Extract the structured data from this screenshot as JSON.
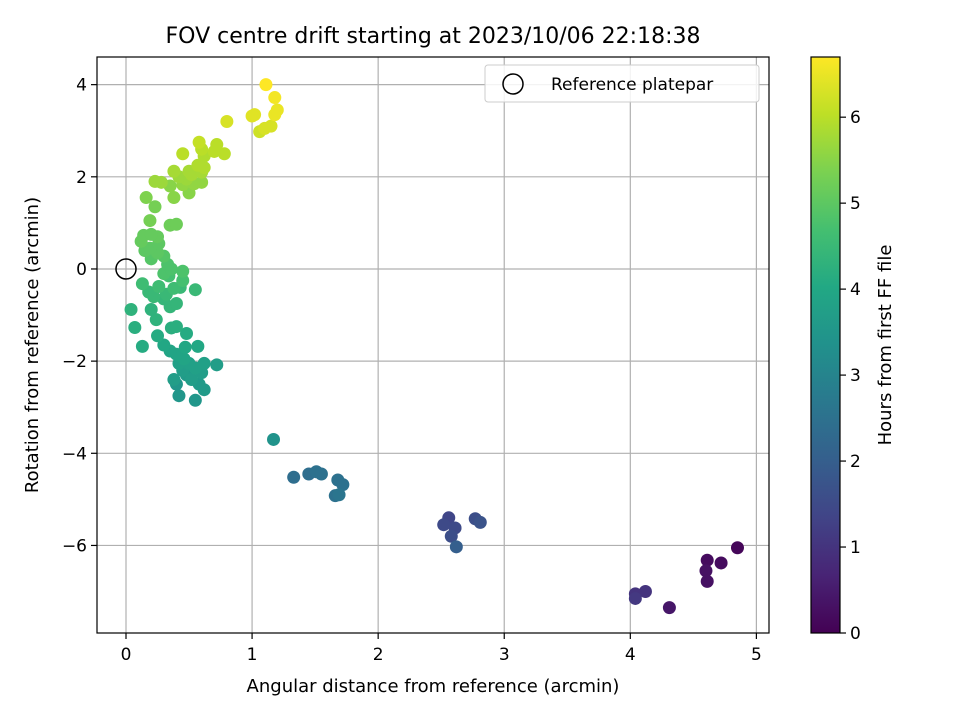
{
  "chart_data": {
    "type": "scatter",
    "title": "FOV centre drift starting at 2023/10/06 22:18:38",
    "xlabel": "Angular distance from reference (arcmin)",
    "ylabel": "Rotation from reference (arcmin)",
    "xlim": [
      -0.23,
      5.1
    ],
    "ylim": [
      -7.9,
      4.6
    ],
    "xticks": [
      "0",
      "1",
      "2",
      "3",
      "4",
      "5"
    ],
    "yticks": [
      "−6",
      "−4",
      "−2",
      "0",
      "2",
      "4"
    ],
    "grid": true,
    "legend": {
      "placement": "top-right",
      "label": "Reference platepar"
    },
    "reference_point": {
      "x": 0,
      "y": 0
    },
    "colorbar": {
      "label": "Hours from first FF file",
      "colormap": "viridis",
      "range": [
        0,
        6.7
      ],
      "ticks": [
        "0",
        "1",
        "2",
        "3",
        "4",
        "5",
        "6"
      ]
    },
    "points": [
      {
        "x": 4.85,
        "y": -6.05,
        "t": 0.1
      },
      {
        "x": 4.61,
        "y": -6.32,
        "t": 0.2
      },
      {
        "x": 4.72,
        "y": -6.38,
        "t": 0.2
      },
      {
        "x": 4.6,
        "y": -6.55,
        "t": 0.3
      },
      {
        "x": 4.61,
        "y": -6.78,
        "t": 0.3
      },
      {
        "x": 4.31,
        "y": -7.35,
        "t": 0.4
      },
      {
        "x": 4.12,
        "y": -7.0,
        "t": 1.0
      },
      {
        "x": 4.04,
        "y": -7.05,
        "t": 1.0
      },
      {
        "x": 4.04,
        "y": -7.15,
        "t": 1.1
      },
      {
        "x": 2.56,
        "y": -5.4,
        "t": 1.4
      },
      {
        "x": 2.52,
        "y": -5.55,
        "t": 1.5
      },
      {
        "x": 2.61,
        "y": -5.62,
        "t": 1.5
      },
      {
        "x": 2.58,
        "y": -5.8,
        "t": 1.6
      },
      {
        "x": 2.77,
        "y": -5.42,
        "t": 1.6
      },
      {
        "x": 2.81,
        "y": -5.5,
        "t": 1.7
      },
      {
        "x": 2.62,
        "y": -6.03,
        "t": 2.0
      },
      {
        "x": 1.33,
        "y": -4.52,
        "t": 2.4
      },
      {
        "x": 1.45,
        "y": -4.45,
        "t": 2.4
      },
      {
        "x": 1.51,
        "y": -4.4,
        "t": 2.5
      },
      {
        "x": 1.55,
        "y": -4.45,
        "t": 2.5
      },
      {
        "x": 1.68,
        "y": -4.58,
        "t": 2.5
      },
      {
        "x": 1.72,
        "y": -4.68,
        "t": 2.5
      },
      {
        "x": 1.66,
        "y": -4.92,
        "t": 2.5
      },
      {
        "x": 1.69,
        "y": -4.9,
        "t": 2.6
      },
      {
        "x": 1.17,
        "y": -3.7,
        "t": 3.4
      },
      {
        "x": 0.4,
        "y": -2.5,
        "t": 3.5
      },
      {
        "x": 0.55,
        "y": -2.85,
        "t": 3.5
      },
      {
        "x": 0.42,
        "y": -2.75,
        "t": 3.5
      },
      {
        "x": 0.62,
        "y": -2.62,
        "t": 3.6
      },
      {
        "x": 0.58,
        "y": -2.5,
        "t": 3.6
      },
      {
        "x": 0.48,
        "y": -2.3,
        "t": 3.6
      },
      {
        "x": 0.52,
        "y": -2.4,
        "t": 3.7
      },
      {
        "x": 0.45,
        "y": -2.2,
        "t": 3.7
      },
      {
        "x": 0.6,
        "y": -2.25,
        "t": 3.7
      },
      {
        "x": 0.38,
        "y": -2.4,
        "t": 3.7
      },
      {
        "x": 0.72,
        "y": -2.08,
        "t": 3.7
      },
      {
        "x": 0.62,
        "y": -2.05,
        "t": 3.8
      },
      {
        "x": 0.55,
        "y": -2.15,
        "t": 3.8
      },
      {
        "x": 0.5,
        "y": -2.05,
        "t": 3.8
      },
      {
        "x": 0.42,
        "y": -2.05,
        "t": 3.8
      },
      {
        "x": 0.46,
        "y": -1.95,
        "t": 3.9
      },
      {
        "x": 0.4,
        "y": -1.85,
        "t": 3.9
      },
      {
        "x": 0.35,
        "y": -1.78,
        "t": 3.9
      },
      {
        "x": 0.3,
        "y": -1.65,
        "t": 4.0
      },
      {
        "x": 0.57,
        "y": -1.68,
        "t": 4.0
      },
      {
        "x": 0.47,
        "y": -1.7,
        "t": 4.0
      },
      {
        "x": 0.48,
        "y": -1.4,
        "t": 4.1
      },
      {
        "x": 0.25,
        "y": -1.45,
        "t": 4.1
      },
      {
        "x": 0.13,
        "y": -1.68,
        "t": 4.1
      },
      {
        "x": 0.07,
        "y": -1.27,
        "t": 4.2
      },
      {
        "x": 0.36,
        "y": -1.28,
        "t": 4.2
      },
      {
        "x": 0.4,
        "y": -1.25,
        "t": 4.2
      },
      {
        "x": 0.24,
        "y": -1.1,
        "t": 4.3
      },
      {
        "x": 0.04,
        "y": -0.88,
        "t": 4.3
      },
      {
        "x": 0.2,
        "y": -0.88,
        "t": 4.3
      },
      {
        "x": 0.35,
        "y": -0.82,
        "t": 4.4
      },
      {
        "x": 0.4,
        "y": -0.75,
        "t": 4.4
      },
      {
        "x": 0.3,
        "y": -0.65,
        "t": 4.4
      },
      {
        "x": 0.22,
        "y": -0.6,
        "t": 4.5
      },
      {
        "x": 0.32,
        "y": -0.55,
        "t": 4.5
      },
      {
        "x": 0.18,
        "y": -0.5,
        "t": 4.5
      },
      {
        "x": 0.55,
        "y": -0.45,
        "t": 4.5
      },
      {
        "x": 0.43,
        "y": -0.4,
        "t": 4.5
      },
      {
        "x": 0.38,
        "y": -0.42,
        "t": 4.6
      },
      {
        "x": 0.26,
        "y": -0.38,
        "t": 4.6
      },
      {
        "x": 0.13,
        "y": -0.32,
        "t": 4.6
      },
      {
        "x": 0.45,
        "y": -0.25,
        "t": 4.7
      },
      {
        "x": 0.34,
        "y": -0.15,
        "t": 4.7
      },
      {
        "x": 0.3,
        "y": -0.1,
        "t": 4.8
      },
      {
        "x": 0.45,
        "y": -0.05,
        "t": 4.8
      },
      {
        "x": 0.36,
        "y": 0.0,
        "t": 4.8
      },
      {
        "x": 0.33,
        "y": 0.1,
        "t": 4.8
      },
      {
        "x": 0.3,
        "y": 0.28,
        "t": 4.9
      },
      {
        "x": 0.2,
        "y": 0.22,
        "t": 4.9
      },
      {
        "x": 0.25,
        "y": 0.35,
        "t": 5.0
      },
      {
        "x": 0.15,
        "y": 0.4,
        "t": 5.0
      },
      {
        "x": 0.19,
        "y": 0.45,
        "t": 5.0
      },
      {
        "x": 0.26,
        "y": 0.55,
        "t": 5.0
      },
      {
        "x": 0.12,
        "y": 0.6,
        "t": 5.1
      },
      {
        "x": 0.25,
        "y": 0.7,
        "t": 5.1
      },
      {
        "x": 0.14,
        "y": 0.73,
        "t": 5.1
      },
      {
        "x": 0.2,
        "y": 0.75,
        "t": 5.1
      },
      {
        "x": 0.35,
        "y": 0.95,
        "t": 5.2
      },
      {
        "x": 0.4,
        "y": 0.97,
        "t": 5.2
      },
      {
        "x": 0.19,
        "y": 1.05,
        "t": 5.3
      },
      {
        "x": 0.23,
        "y": 1.35,
        "t": 5.3
      },
      {
        "x": 0.16,
        "y": 1.55,
        "t": 5.4
      },
      {
        "x": 0.38,
        "y": 1.55,
        "t": 5.5
      },
      {
        "x": 0.5,
        "y": 1.65,
        "t": 5.5
      },
      {
        "x": 0.35,
        "y": 1.8,
        "t": 5.5
      },
      {
        "x": 0.45,
        "y": 1.83,
        "t": 5.6
      },
      {
        "x": 0.54,
        "y": 1.85,
        "t": 5.6
      },
      {
        "x": 0.6,
        "y": 1.88,
        "t": 5.6
      },
      {
        "x": 0.28,
        "y": 1.88,
        "t": 5.7
      },
      {
        "x": 0.23,
        "y": 1.9,
        "t": 5.7
      },
      {
        "x": 0.48,
        "y": 1.95,
        "t": 5.7
      },
      {
        "x": 0.42,
        "y": 2.0,
        "t": 5.7
      },
      {
        "x": 0.52,
        "y": 2.05,
        "t": 5.8
      },
      {
        "x": 0.6,
        "y": 2.1,
        "t": 5.8
      },
      {
        "x": 0.5,
        "y": 2.12,
        "t": 5.8
      },
      {
        "x": 0.38,
        "y": 2.12,
        "t": 5.8
      },
      {
        "x": 0.62,
        "y": 2.2,
        "t": 5.9
      },
      {
        "x": 0.57,
        "y": 2.25,
        "t": 5.9
      },
      {
        "x": 0.62,
        "y": 2.45,
        "t": 5.9
      },
      {
        "x": 0.45,
        "y": 2.5,
        "t": 6.0
      },
      {
        "x": 0.78,
        "y": 2.5,
        "t": 6.0
      },
      {
        "x": 0.7,
        "y": 2.55,
        "t": 6.0
      },
      {
        "x": 0.6,
        "y": 2.6,
        "t": 6.0
      },
      {
        "x": 0.72,
        "y": 2.7,
        "t": 6.0
      },
      {
        "x": 0.58,
        "y": 2.75,
        "t": 6.1
      },
      {
        "x": 1.06,
        "y": 2.98,
        "t": 6.2
      },
      {
        "x": 1.1,
        "y": 3.05,
        "t": 6.3
      },
      {
        "x": 1.15,
        "y": 3.1,
        "t": 6.3
      },
      {
        "x": 0.8,
        "y": 3.2,
        "t": 6.3
      },
      {
        "x": 1.0,
        "y": 3.32,
        "t": 6.4
      },
      {
        "x": 1.02,
        "y": 3.35,
        "t": 6.4
      },
      {
        "x": 1.18,
        "y": 3.35,
        "t": 6.5
      },
      {
        "x": 1.2,
        "y": 3.45,
        "t": 6.5
      },
      {
        "x": 1.18,
        "y": 3.72,
        "t": 6.6
      },
      {
        "x": 1.11,
        "y": 4.0,
        "t": 6.7
      }
    ]
  }
}
